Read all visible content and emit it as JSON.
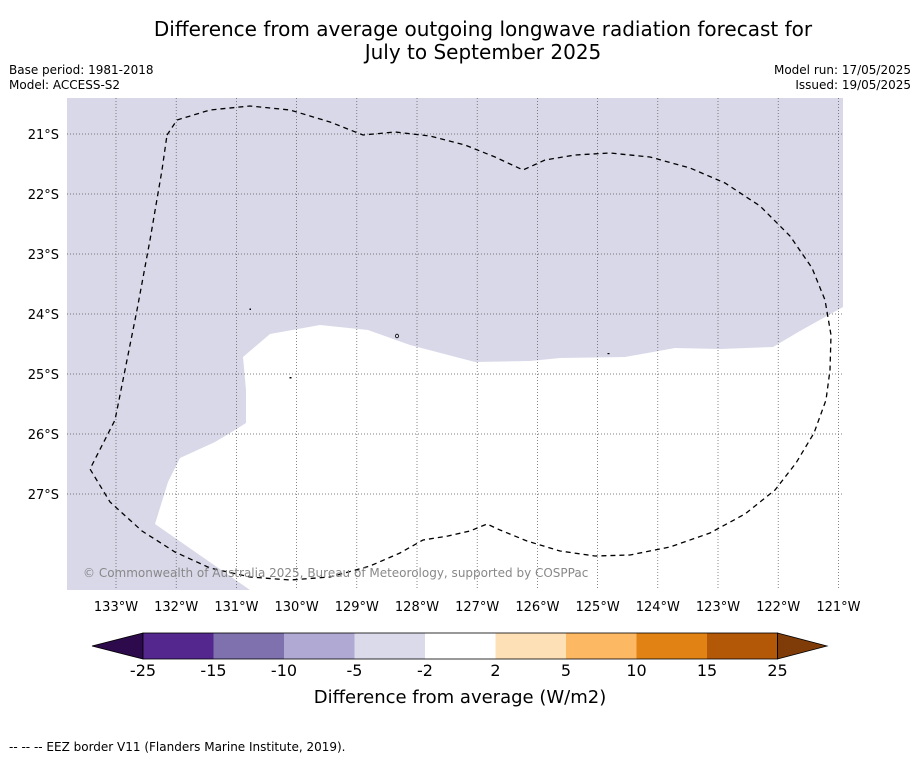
{
  "title_line1": "Difference from average outgoing longwave radiation forecast for",
  "title_line2": "July to September 2025",
  "meta_left": {
    "base_period": "Base period: 1981-2018",
    "model": "Model: ACCESS-S2"
  },
  "meta_right": {
    "model_run": "Model run: 17/05/2025",
    "issued": "Issued: 19/05/2025"
  },
  "map": {
    "lon_labels": [
      "133°W",
      "132°W",
      "131°W",
      "130°W",
      "129°W",
      "128°W",
      "127°W",
      "126°W",
      "125°W",
      "124°W",
      "123°W",
      "122°W",
      "121°W"
    ],
    "lat_labels": [
      "21°S",
      "22°S",
      "23°S",
      "24°S",
      "25°S",
      "26°S",
      "27°S"
    ],
    "copyright": "© Commonwealth of Australia 2025, Bureau of Meteorology, supported by COSPPac",
    "colors": {
      "anomaly_minus5_to_minus2": "#d8d8e9",
      "near_average": "#ffffff",
      "eez_border": "#000000"
    }
  },
  "colorbar": {
    "tick_labels": [
      "-25",
      "-15",
      "-10",
      "-5",
      "-2",
      "2",
      "5",
      "10",
      "15",
      "25"
    ],
    "label": "Difference from average (W/m2)",
    "colors": [
      "#2d0a4b",
      "#54278f",
      "#7e71ae",
      "#b0a9d3",
      "#dadaeb",
      "#ffffff",
      "#fee0b6",
      "#fdb863",
      "#e08214",
      "#b35806",
      "#7f3b08"
    ]
  },
  "footer": "--  --  -- EEZ border V11 (Flanders Marine Institute, 2019)."
}
